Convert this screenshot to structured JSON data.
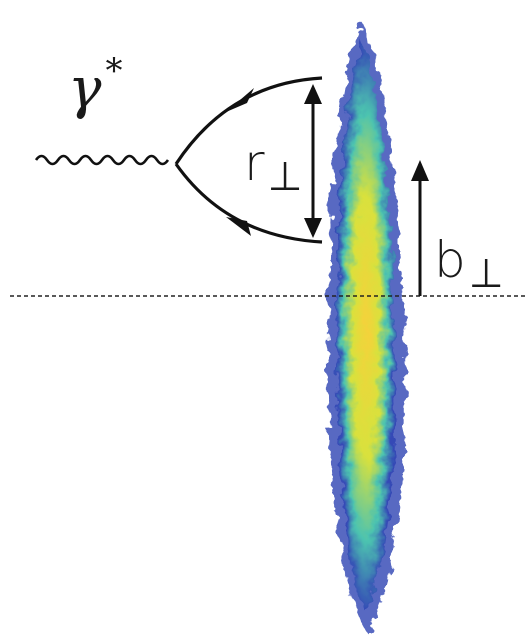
{
  "labels": {
    "photon": "γ",
    "photon_superscript": "*",
    "dipole_size": "r",
    "impact_parameter": "b",
    "perp_symbol": "⊥"
  },
  "colors": {
    "line": "#111111",
    "target_outer": "#3a4fb8",
    "target_mid": "#2fb5a8",
    "target_inner": "#e8e23c",
    "target_hot": "#f0701e"
  }
}
